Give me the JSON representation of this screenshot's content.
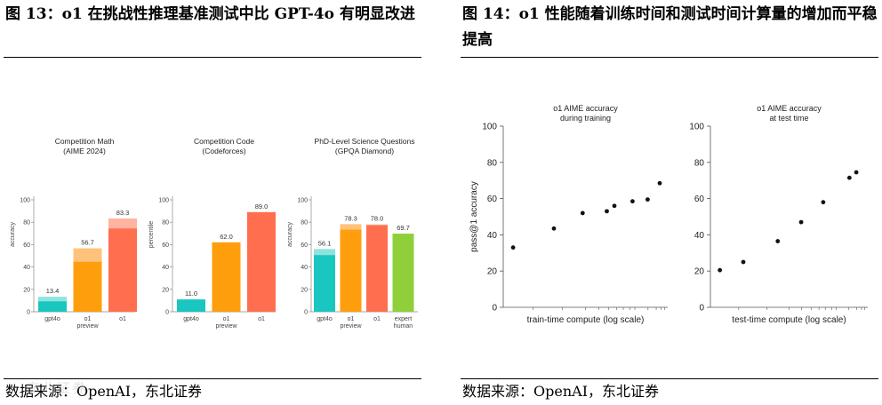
{
  "left": {
    "title": "图 13：o1 在挑战性推理基准测试中比 GPT-4o 有明显改进",
    "source": "数据来源：OpenAI，东北证券",
    "colors": {
      "gpt4o": "#19c6c0",
      "gpt4o_light": "#8fe3df",
      "o1_preview": "#ff9e0c",
      "o1_preview_light": "#ffc27a",
      "o1": "#ff6f4f",
      "o1_light": "#ffb3a1",
      "expert": "#8fd03a"
    },
    "chart_data": [
      {
        "type": "bar",
        "title": "Competition Math",
        "subtitle": "(AIME 2024)",
        "ylabel": "accuracy",
        "ylim": [
          0,
          100
        ],
        "yticks": [
          0,
          20,
          40,
          60,
          80,
          100
        ],
        "bars": [
          {
            "label": "gpt4o",
            "label2": "",
            "value": 13.4,
            "base": 9.3,
            "color_key": "gpt4o"
          },
          {
            "label": "o1",
            "label2": "preview",
            "value": 56.7,
            "base": 44.6,
            "color_key": "o1_preview"
          },
          {
            "label": "o1",
            "label2": "",
            "value": 83.3,
            "base": 74.4,
            "color_key": "o1"
          }
        ]
      },
      {
        "type": "bar",
        "title": "Competition Code",
        "subtitle": "(Codeforces)",
        "ylabel": "percentile",
        "ylim": [
          0,
          100
        ],
        "yticks": [
          0,
          20,
          40,
          60,
          80,
          100
        ],
        "bars": [
          {
            "label": "gpt4o",
            "label2": "",
            "value": 11.0,
            "base": 11.0,
            "color_key": "gpt4o"
          },
          {
            "label": "o1",
            "label2": "preview",
            "value": 62.0,
            "base": 62.0,
            "color_key": "o1_preview"
          },
          {
            "label": "o1",
            "label2": "",
            "value": 89.0,
            "base": 89.0,
            "color_key": "o1"
          }
        ]
      },
      {
        "type": "bar",
        "title": "PhD-Level Science Questions",
        "subtitle": "(GPQA Diamond)",
        "ylabel": "accuracy",
        "ylim": [
          0,
          100
        ],
        "yticks": [
          0,
          20,
          40,
          60,
          80,
          100
        ],
        "bars": [
          {
            "label": "gpt4o",
            "label2": "",
            "value": 56.1,
            "base": 50.6,
            "color_key": "gpt4o"
          },
          {
            "label": "o1",
            "label2": "preview",
            "value": 78.3,
            "base": 73.3,
            "color_key": "o1_preview"
          },
          {
            "label": "o1",
            "label2": "",
            "value": 78.0,
            "base": 77.3,
            "color_key": "o1"
          },
          {
            "label": "expert",
            "label2": "human",
            "value": 69.7,
            "base": 69.7,
            "color_key": "expert"
          }
        ]
      }
    ]
  },
  "right": {
    "title": "图 14：o1 性能随着训练时间和测试时间计算量的增加而平稳提高",
    "source": "数据来源：OpenAI，东北证券",
    "chart_data": [
      {
        "type": "scatter",
        "title": "o1 AIME accuracy",
        "subtitle": "during training",
        "xlabel": "train-time compute (log scale)",
        "ylabel": "pass@1 accuracy",
        "xlim": [
          0,
          1
        ],
        "ylim": [
          0,
          100
        ],
        "yticks": [
          0,
          20,
          40,
          60,
          80,
          100
        ],
        "x": [
          0.03,
          0.3,
          0.49,
          0.65,
          0.7,
          0.82,
          0.92,
          1.0
        ],
        "y": [
          33,
          43.5,
          52,
          53,
          56,
          58.5,
          59.5,
          68.5
        ]
      },
      {
        "type": "scatter",
        "title": "o1 AIME accuracy",
        "subtitle": "at test time",
        "xlabel": "test-time compute (log scale)",
        "ylabel": "",
        "xlim": [
          0,
          1
        ],
        "ylim": [
          0,
          100
        ],
        "yticks": [
          0,
          20,
          40,
          60,
          80,
          100
        ],
        "x": [
          0.03,
          0.2,
          0.45,
          0.62,
          0.78,
          0.97,
          1.02
        ],
        "y": [
          20.5,
          25,
          36.5,
          47,
          58,
          71.5,
          74.5
        ]
      }
    ]
  },
  "watermark": "东北证券"
}
